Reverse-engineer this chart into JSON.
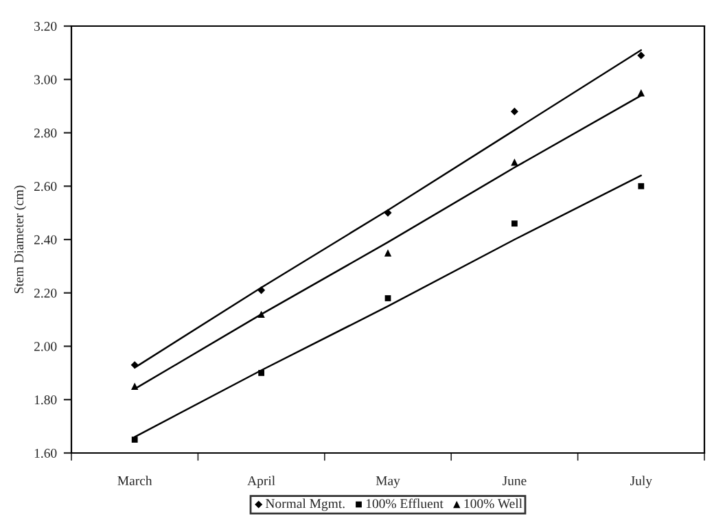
{
  "chart_data": {
    "type": "scatter",
    "ylabel": "Stem Diameter (cm)",
    "categories": [
      "March",
      "April",
      "May",
      "June",
      "July"
    ],
    "series": [
      {
        "name": "Normal Mgmt.",
        "color": "#000000",
        "marker": "diamond",
        "values": [
          1.93,
          2.21,
          2.5,
          2.88,
          3.09
        ]
      },
      {
        "name": "100% Effluent",
        "color": "#000000",
        "marker": "square",
        "values": [
          1.65,
          1.9,
          2.18,
          2.46,
          2.6
        ]
      },
      {
        "name": "100% Well",
        "color": "#000000",
        "marker": "triangle",
        "values": [
          1.85,
          2.12,
          2.35,
          2.69,
          2.95
        ]
      },
      {
        "type": "line",
        "color": "#000000",
        "marker": "none",
        "values": [
          1.92,
          2.22,
          2.51,
          2.81,
          3.11
        ]
      },
      {
        "type": "line",
        "color": "#000000",
        "marker": "none",
        "values": [
          1.66,
          1.91,
          2.15,
          2.4,
          2.64
        ]
      },
      {
        "type": "line",
        "color": "#000000",
        "marker": "none",
        "values": [
          1.84,
          2.12,
          2.39,
          2.67,
          2.94
        ]
      }
    ],
    "ylim": [
      1.6,
      3.2
    ],
    "yticks": [
      {
        "value": 1.6,
        "label": "1.60"
      },
      {
        "value": 1.8,
        "label": "1.80"
      },
      {
        "value": 2.0,
        "label": "2.00"
      },
      {
        "value": 2.2,
        "label": "2.20"
      },
      {
        "value": 2.4,
        "label": "2.40"
      },
      {
        "value": 2.6,
        "label": "2.60"
      },
      {
        "value": 2.8,
        "label": "2.80"
      },
      {
        "value": 3.0,
        "label": "3.00"
      },
      {
        "value": 3.2,
        "label": "3.20"
      }
    ],
    "grid": false,
    "legend": "bottom"
  }
}
